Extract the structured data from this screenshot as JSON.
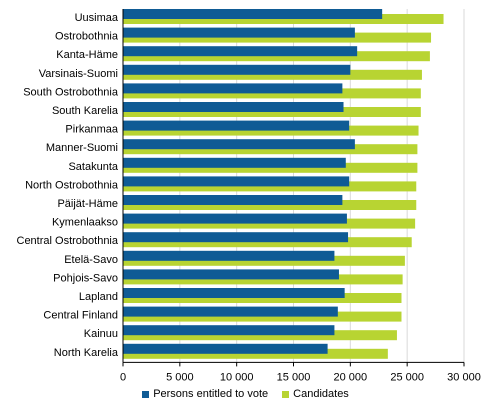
{
  "chart_data": {
    "type": "bar",
    "orientation": "horizontal",
    "categories": [
      "Uusimaa",
      "Ostrobothnia",
      "Kanta-Häme",
      "Varsinais-Suomi",
      "South Ostrobothnia",
      "South Karelia",
      "Pirkanmaa",
      "Manner-Suomi",
      "Satakunta",
      "North Ostrobothnia",
      "Päijät-Häme",
      "Kymenlaakso",
      "Central Ostrobothnia",
      "Etelä-Savo",
      "Pohjois-Savo",
      "Lapland",
      "Central Finland",
      "Kainuu",
      "North Karelia"
    ],
    "series": [
      {
        "name": "Persons entitled to vote",
        "color": "#0f5b95",
        "values": [
          22800,
          20400,
          20600,
          20000,
          19300,
          19400,
          19900,
          20400,
          19600,
          19900,
          19300,
          19700,
          19800,
          18600,
          19000,
          19500,
          18900,
          18600,
          18000
        ]
      },
      {
        "name": "Candidates",
        "color": "#b8d432",
        "values": [
          28200,
          27100,
          27000,
          26300,
          26200,
          26200,
          26000,
          25900,
          25900,
          25800,
          25800,
          25700,
          25400,
          24800,
          24600,
          24500,
          24500,
          24100,
          23300
        ]
      }
    ],
    "xlim": [
      0,
      30000
    ],
    "xticks": [
      0,
      5000,
      10000,
      15000,
      20000,
      25000,
      30000
    ],
    "xtick_labels": [
      "0",
      "5 000",
      "10 000",
      "15 000",
      "20 000",
      "25 000",
      "30 000"
    ],
    "grid": "vertical",
    "legend_position": "bottom"
  }
}
